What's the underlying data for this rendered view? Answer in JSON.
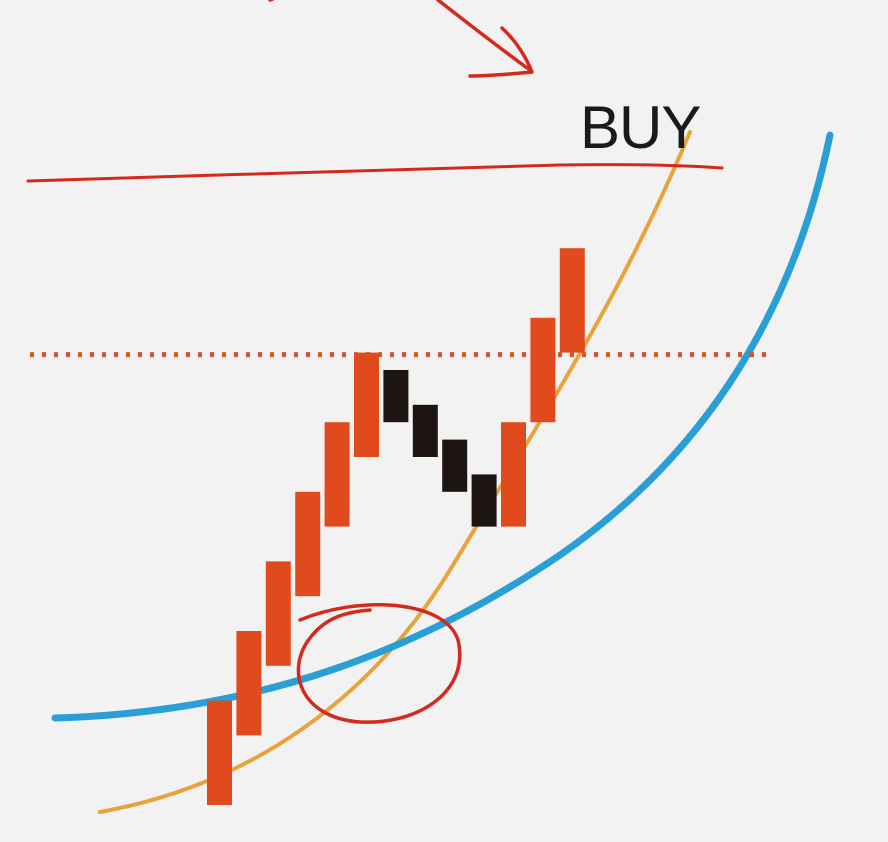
{
  "chart_data": {
    "type": "bar",
    "subtype": "renko-bricks",
    "title": "",
    "xlabel": "",
    "ylabel": "",
    "bricks": [
      {
        "index": 1,
        "direction": "up",
        "low": 0,
        "high": 6
      },
      {
        "index": 2,
        "direction": "up",
        "low": 4,
        "high": 10
      },
      {
        "index": 3,
        "direction": "up",
        "low": 8,
        "high": 14
      },
      {
        "index": 4,
        "direction": "up",
        "low": 12,
        "high": 18
      },
      {
        "index": 5,
        "direction": "up",
        "low": 16,
        "high": 22
      },
      {
        "index": 6,
        "direction": "up",
        "low": 20,
        "high": 26
      },
      {
        "index": 7,
        "direction": "down",
        "low": 22,
        "high": 25
      },
      {
        "index": 8,
        "direction": "down",
        "low": 20,
        "high": 23
      },
      {
        "index": 9,
        "direction": "down",
        "low": 18,
        "high": 21
      },
      {
        "index": 10,
        "direction": "down",
        "low": 16,
        "high": 19
      },
      {
        "index": 11,
        "direction": "up",
        "low": 16,
        "high": 22
      },
      {
        "index": 12,
        "direction": "up",
        "low": 22,
        "high": 28
      },
      {
        "index": 13,
        "direction": "up",
        "low": 26,
        "high": 32
      }
    ],
    "resistance_level": 26,
    "signal": {
      "label": "BUY",
      "at_brick": 13
    },
    "moving_averages": [
      {
        "key": "fast",
        "color": "#e8a33a"
      },
      {
        "key": "slow",
        "color": "#2a9fd6"
      }
    ],
    "annotations": {
      "crossover_circle": true,
      "arrow_to_breakout": true,
      "color": "#d42a1e"
    },
    "grid": false,
    "legend": "none"
  },
  "colors": {
    "up": "#e04a1c",
    "down": "#1c1512",
    "resistance_dots": "#d8532a",
    "annotation": "#d42a1e",
    "background": "#f2f2f2"
  }
}
